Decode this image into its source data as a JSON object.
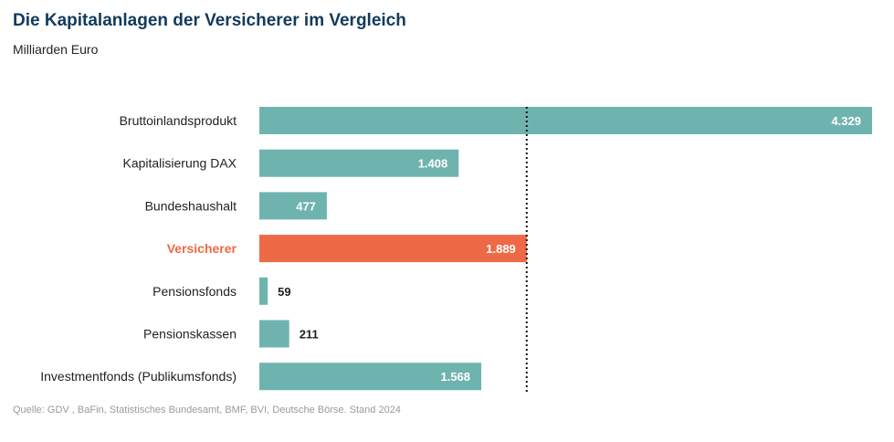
{
  "header": {
    "title": "Die Kapitalanlagen der Versicherer im Vergleich",
    "subtitle": "Milliarden Euro"
  },
  "footer": {
    "source": "Quelle: GDV , BaFin, Statistisches Bundesamt, BMF, BVI, Deutsche Börse. Stand 2024"
  },
  "colors": {
    "bar": "#6fb3af",
    "highlight": "#ee6a47",
    "title": "#123a5c"
  },
  "chart_data": {
    "type": "bar",
    "orientation": "horizontal",
    "title": "Die Kapitalanlagen der Versicherer im Vergleich",
    "ylabel": "Milliarden Euro",
    "categories": [
      "Bruttoinlandsprodukt",
      "Kapitalisierung DAX",
      "Bundeshaushalt",
      "Versicherer",
      "Pensionsfonds",
      "Pensionskassen",
      "Investmentfonds (Publikumsfonds)"
    ],
    "values": [
      4329,
      1408,
      477,
      1889,
      59,
      211,
      1568
    ],
    "value_labels": [
      "4.329",
      "1.408",
      "477",
      "1.889",
      "59",
      "211",
      "1.568"
    ],
    "highlight_category": "Versicherer",
    "reference_line": {
      "value": 1889,
      "style": "dotted"
    },
    "xlim": [
      0,
      4329
    ],
    "grid": false,
    "legend": "none"
  }
}
